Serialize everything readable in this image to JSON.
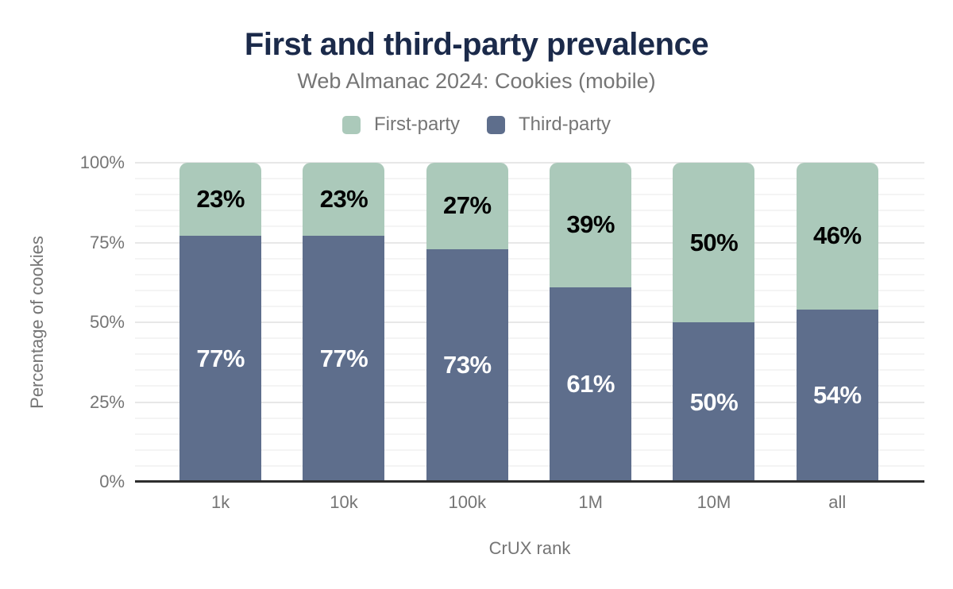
{
  "colors": {
    "background": "#ffffff",
    "title": "#1b2a4a",
    "muted_text": "#757575",
    "grid_minor": "#f4f4f4",
    "grid_major": "#e7e7e7",
    "axis_line": "#2e2e2e"
  },
  "chart_data": {
    "type": "bar",
    "stacked": true,
    "stack_total": 100,
    "title": "First and third-party prevalence",
    "subtitle": "Web Almanac 2024: Cookies (mobile)",
    "xlabel": "CrUX rank",
    "ylabel": "Percentage of cookies",
    "categories": [
      "1k",
      "10k",
      "100k",
      "1M",
      "10M",
      "all"
    ],
    "series": [
      {
        "name": "First-party",
        "color": "#abc9ba",
        "label_color": "#000000",
        "values": [
          23,
          23,
          27,
          39,
          50,
          46
        ]
      },
      {
        "name": "Third-party",
        "color": "#5e6e8c",
        "label_color": "#ffffff",
        "values": [
          77,
          77,
          73,
          61,
          50,
          54
        ]
      }
    ],
    "value_suffix": "%",
    "ylim": [
      0,
      100
    ],
    "yticks": [
      "0%",
      "25%",
      "50%",
      "75%",
      "100%"
    ],
    "grid": {
      "minor_step": 5,
      "major_step": 25
    },
    "legend_position": "top"
  }
}
